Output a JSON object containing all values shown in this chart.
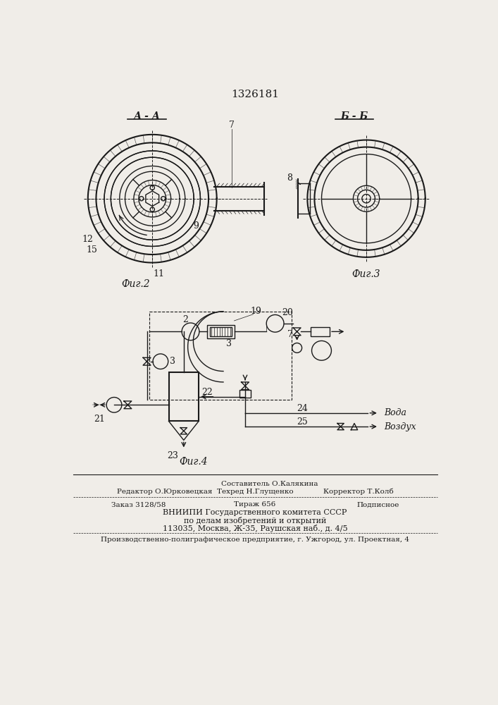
{
  "title": "1326181",
  "fig2_label": "Фиг.2",
  "fig3_label": "Фиг.3",
  "fig4_label": "Фиг.4",
  "section_aa": "А - А",
  "section_bb": "Б - Б",
  "bg_color": "#f0ede8",
  "line_color": "#1a1a1a",
  "footer_line1": "Составитель О.Калякина",
  "footer_editor": "Редактор О.Юрковецкая",
  "footer_tech": "Техред Н.Глущенко",
  "footer_corr": "Корректор Т.Колб",
  "footer_order": "Заказ 3128/58",
  "footer_tirazh": "Тираж 656",
  "footer_podp": "Подписное",
  "footer_vniip1": "ВНИИПИ Государственного комитета СССР",
  "footer_vniip2": "по делам изобретений и открытий",
  "footer_addr": "113035, Москва, Ж-35, Раушская наб., д. 4/5",
  "footer_uzh": "Производственно-полиграфическое предприятие, г. Ужгород, ул. Проектная, 4"
}
